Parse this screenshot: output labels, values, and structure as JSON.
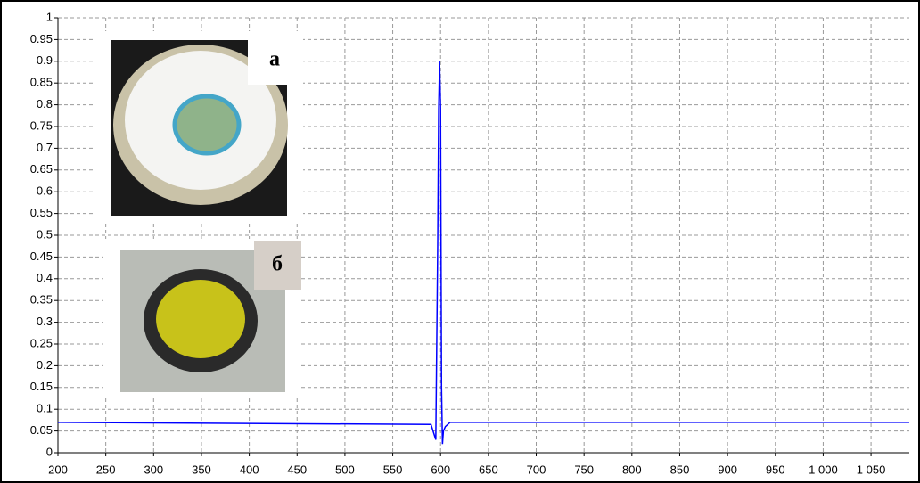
{
  "chart_data": {
    "type": "line",
    "x": [
      200,
      590,
      595,
      597,
      598,
      599,
      600,
      601,
      602,
      603,
      605,
      610,
      1090
    ],
    "series": [
      {
        "color": "#0000ff",
        "values": [
          0.07,
          0.065,
          0.03,
          0.48,
          0.79,
          0.9,
          0.79,
          0.15,
          0.02,
          0.05,
          0.06,
          0.07,
          0.07
        ]
      }
    ],
    "xlim": [
      200,
      1090
    ],
    "xticks": [
      200,
      250,
      300,
      350,
      400,
      450,
      500,
      550,
      600,
      650,
      700,
      750,
      800,
      850,
      900,
      950,
      {
        "value": 1000,
        "label": "1 000"
      },
      {
        "value": 1050,
        "label": "1 050"
      }
    ],
    "ylim": [
      0,
      1
    ],
    "yticks": [
      0,
      0.05,
      0.1,
      0.15,
      0.2,
      0.25,
      0.3,
      0.35,
      0.4,
      0.45,
      0.5,
      0.55,
      0.6,
      0.65,
      0.7,
      0.75,
      0.8,
      0.85,
      0.9,
      0.95,
      1
    ],
    "grid": true,
    "annotations": [
      "а",
      "б"
    ]
  }
}
